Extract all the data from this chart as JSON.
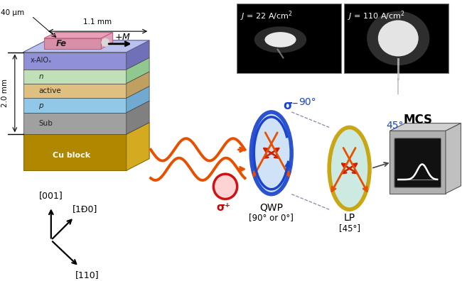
{
  "bg_color": "#ffffff",
  "annotations": {
    "dim_40um": "40 μm",
    "dim_11mm": "1.1 mm",
    "dim_20mm": "2.0 mm",
    "magnetization": "+M",
    "cu_block": "Cu block",
    "sigma_plus": "σ⁺",
    "sigma_minus": "σ⁻",
    "angle_90": "90°",
    "angle_45": "45°",
    "qwp_label": "QWP",
    "qwp_angle": "[90° or 0°]",
    "lp_label": "LP",
    "lp_angle": "[45°]",
    "mcs_label": "MCS",
    "axis_001": "[001]",
    "axis_1m10": "[1Đ0]",
    "axis_110": "[110]"
  },
  "colors": {
    "bg": "#ffffff",
    "orange_spiral": "#e85000",
    "blue_circle": "#1a44cc",
    "red_arrows": "#cc2200",
    "gold": "#c8a000",
    "cu_gold": "#c8960a",
    "cu_front": "#b08800",
    "cu_right": "#d4aa20",
    "fe_pink": "#e8a0b8",
    "fe_front": "#d890a8",
    "fe_right": "#e0a0b8",
    "layer_top_face": "#c0c8f0",
    "layer_top": "#9090d8",
    "layer_top_side": "#7070b8",
    "layer_n": "#c0e0b8",
    "layer_n_side": "#90c890",
    "layer_active": "#e0c080",
    "layer_active_side": "#c0a060",
    "layer_p": "#90c8e8",
    "layer_p_side": "#70aad0",
    "layer_sub": "#a0a0a0",
    "layer_sub_side": "#808080",
    "text_black": "#000000",
    "text_blue": "#1a44cc",
    "text_red": "#cc0000",
    "inset_bg": "#000000",
    "mcs_front": "#b0b0b0",
    "mcs_top": "#d0d0d0",
    "mcs_right": "#c0c0c0"
  }
}
